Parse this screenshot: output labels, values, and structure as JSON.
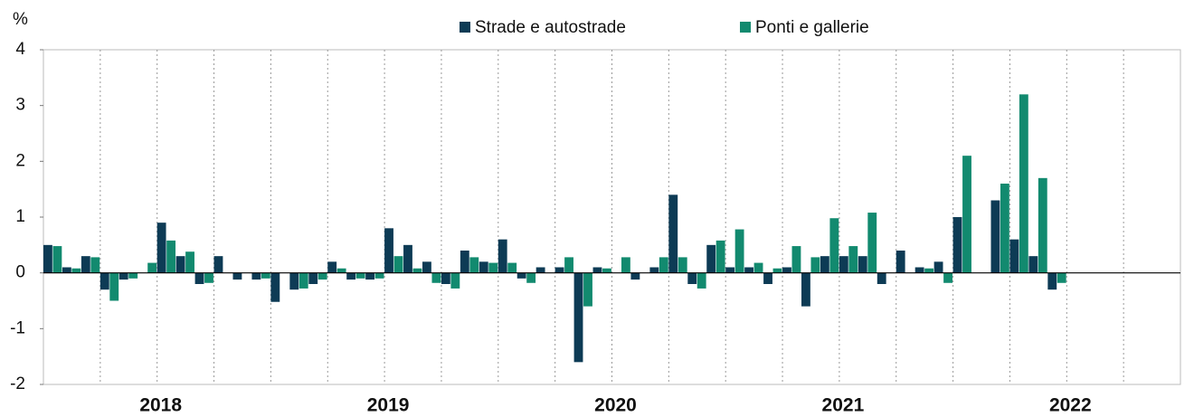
{
  "chart_data": {
    "type": "bar",
    "y_label": "%",
    "categories": [
      null,
      null,
      null,
      null,
      null,
      null,
      "2018",
      null,
      null,
      null,
      null,
      null,
      null,
      null,
      null,
      null,
      null,
      null,
      "2019",
      null,
      null,
      null,
      null,
      null,
      null,
      null,
      null,
      null,
      null,
      null,
      "2020",
      null,
      null,
      null,
      null,
      null,
      null,
      null,
      null,
      null,
      null,
      null,
      "2021",
      null,
      null,
      null,
      null,
      null,
      null,
      null,
      null,
      null,
      null,
      null,
      "2022",
      null,
      null,
      null,
      null,
      null
    ],
    "series": [
      {
        "name": "Strade e autostrade",
        "color": "#0d3b55",
        "values": [
          0.5,
          0.1,
          0.3,
          -0.3,
          -0.12,
          0,
          0.9,
          0.3,
          -0.2,
          0.3,
          -0.12,
          -0.12,
          -0.52,
          -0.3,
          -0.2,
          0.2,
          -0.12,
          -0.12,
          0.8,
          0.5,
          0.2,
          -0.2,
          0.4,
          0.2,
          0.6,
          -0.1,
          0.1,
          0.1,
          -1.6,
          0.1,
          0,
          -0.12,
          0.1,
          1.4,
          -0.2,
          0.5,
          0.1,
          0.1,
          -0.2,
          0.1,
          -0.6,
          0.3,
          0.3,
          0.3,
          -0.2,
          0.4,
          0.1,
          0.2,
          1.0,
          0,
          1.3,
          0.6,
          0.3,
          -0.3,
          null,
          null,
          null,
          null,
          null,
          null
        ]
      },
      {
        "name": "Ponti e gallerie",
        "color": "#128a6f",
        "values": [
          0.48,
          0.08,
          0.28,
          -0.5,
          -0.1,
          0.18,
          0.58,
          0.38,
          -0.18,
          0,
          0,
          -0.1,
          0,
          -0.28,
          -0.12,
          0.08,
          -0.1,
          -0.1,
          0.3,
          0.08,
          -0.18,
          -0.28,
          0.28,
          0.18,
          0.18,
          -0.18,
          0,
          0.28,
          -0.6,
          0.08,
          0.28,
          0,
          0.28,
          0.28,
          -0.28,
          0.58,
          0.78,
          0.18,
          0.08,
          0.48,
          0.28,
          0.98,
          0.48,
          1.08,
          0,
          0,
          0.08,
          -0.18,
          2.1,
          0,
          1.6,
          3.2,
          1.7,
          -0.18,
          null,
          null,
          null,
          null,
          null,
          null
        ]
      }
    ],
    "ylim": [
      -2,
      4
    ],
    "yticks": [
      -2,
      -1,
      0,
      1,
      2,
      3,
      4
    ]
  }
}
